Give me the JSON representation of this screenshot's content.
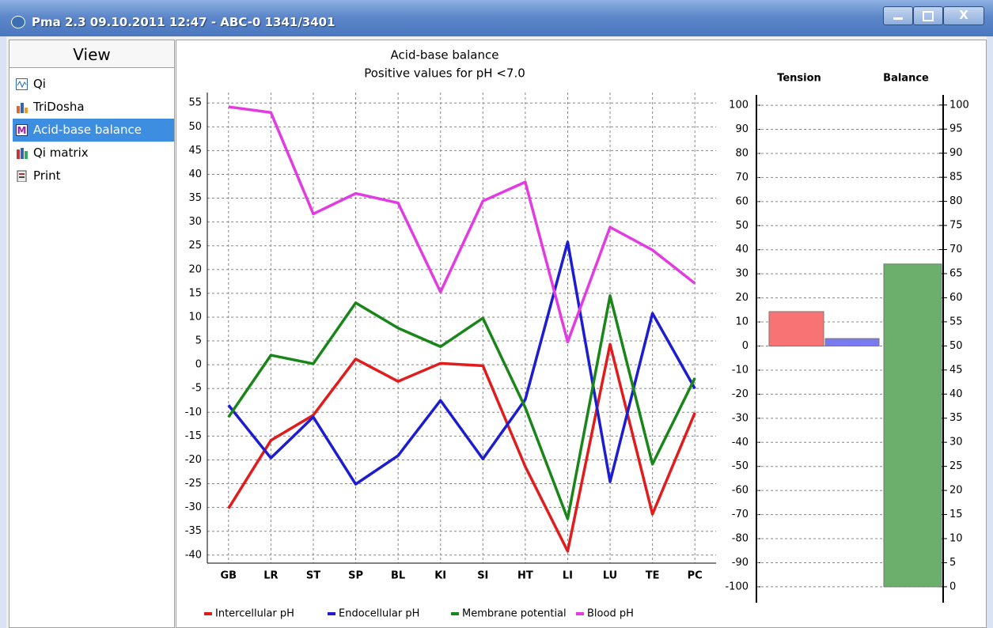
{
  "window": {
    "title": "Pma 2.3 09.10.2011 12:47  - ABC-0 1341/3401"
  },
  "sidebar": {
    "header": "View",
    "items": [
      "Qi",
      "TriDosha",
      "Acid-base balance",
      "Qi matrix",
      "Print"
    ]
  },
  "chart_data": [
    {
      "type": "line",
      "title": "Acid-base balance",
      "subtitle": "Positive values for pH <7.0",
      "categories": [
        "GB",
        "LR",
        "ST",
        "SP",
        "BL",
        "KI",
        "SI",
        "HT",
        "LI",
        "LU",
        "TE",
        "PC"
      ],
      "series": [
        {
          "name": "Intercellular pH",
          "color": "#e01c1c",
          "values": [
            -30.2,
            -15.9,
            -10.6,
            1.2,
            -3.5,
            0.3,
            -0.2,
            -21.4,
            -39.2,
            4.3,
            -31.4,
            -10.1
          ]
        },
        {
          "name": "Endocellular pH",
          "color": "#1c1cd0",
          "values": [
            -8.5,
            -19.6,
            -11,
            -25.1,
            -19.1,
            -7.5,
            -19.8,
            -7.3,
            25.8,
            -24.6,
            10.8,
            -5
          ]
        },
        {
          "name": "Membrane potential",
          "color": "#1a861a",
          "values": [
            -11,
            2,
            0.2,
            13,
            7.7,
            3.8,
            9.8,
            -9,
            -32.4,
            14.5,
            -20.9,
            -2.8
          ]
        },
        {
          "name": "Blood pH",
          "color": "#e23be2",
          "values": [
            54.2,
            53,
            31.7,
            36,
            34,
            15.3,
            34.4,
            38.4,
            4.8,
            28.9,
            24.1,
            17.1
          ]
        }
      ],
      "ylim": [
        -41.7,
        57.2
      ],
      "yticks": [
        -40,
        -35,
        -30,
        -25,
        -20,
        -15,
        -10,
        -5,
        0,
        5,
        10,
        15,
        20,
        25,
        30,
        35,
        40,
        45,
        50,
        55
      ],
      "grid": true,
      "legend": "bottom"
    },
    {
      "type": "bar",
      "ylabel": "Tension",
      "y2label": "Balance",
      "series": [
        {
          "color": "#f87474",
          "values": [
            14.3
          ]
        },
        {
          "color": "#7a7af0",
          "values": [
            3.1
          ]
        },
        {
          "color": "#6cae6c",
          "values": [
            67
          ],
          "axis": "y2"
        }
      ],
      "ylim": [
        -106.6,
        104.3
      ],
      "yticks": [
        -100,
        -90,
        -80,
        -70,
        -60,
        -50,
        -40,
        -30,
        -20,
        -10,
        0,
        10,
        20,
        30,
        40,
        50,
        60,
        70,
        80,
        90,
        100
      ],
      "y2lim": [
        -3.3,
        102.1
      ],
      "y2ticks": [
        0,
        5,
        10,
        15,
        20,
        25,
        30,
        35,
        40,
        45,
        50,
        55,
        60,
        65,
        70,
        75,
        80,
        85,
        90,
        95,
        100
      ],
      "grid": true
    }
  ]
}
